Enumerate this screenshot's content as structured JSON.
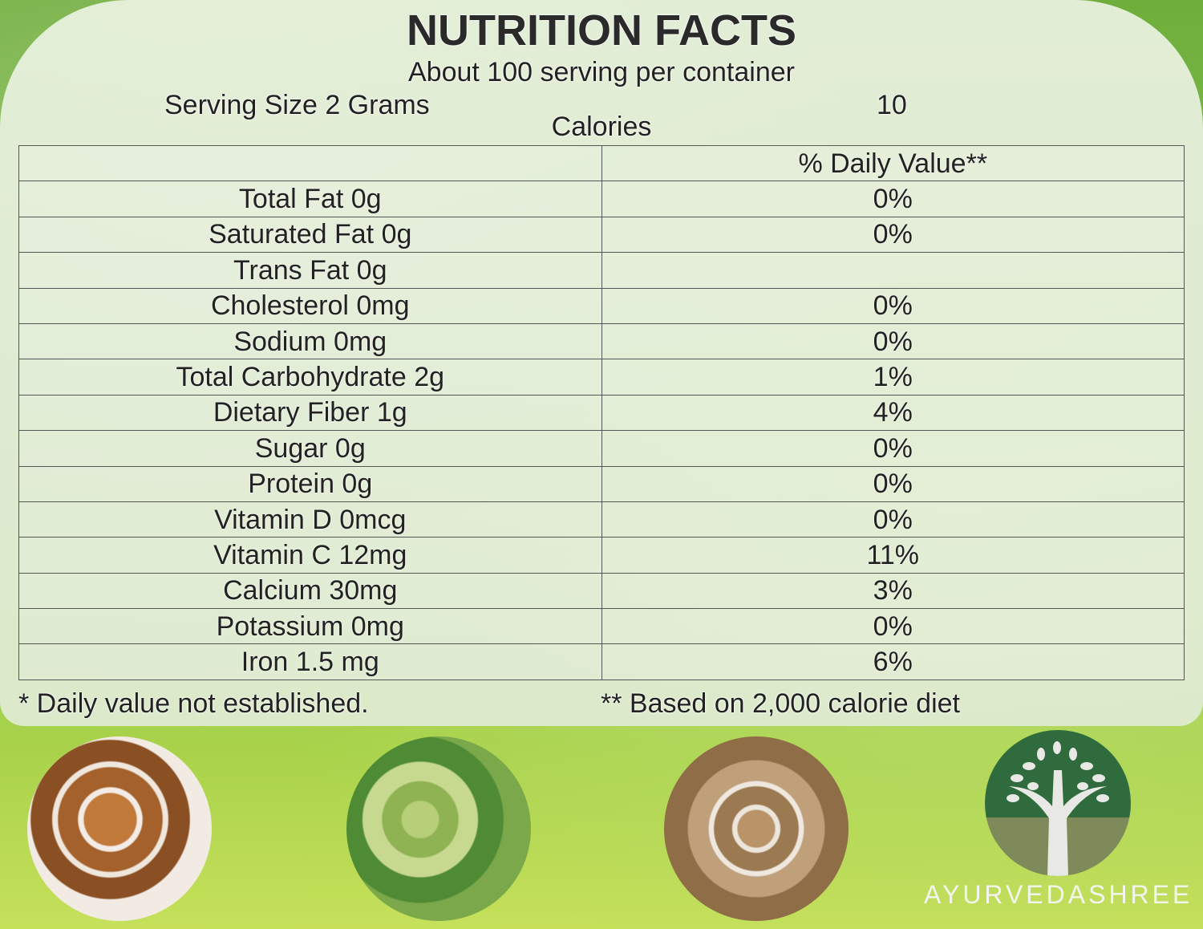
{
  "title": "NUTRITION FACTS",
  "servings_per_container": "About 100 serving per container",
  "serving_size": "Serving Size 2 Grams",
  "calories_value": "10",
  "calories_label": "Calories",
  "table": {
    "header": [
      "",
      "% Daily Value**"
    ],
    "rows": [
      [
        "Total Fat 0g",
        "0%"
      ],
      [
        "Saturated Fat 0g",
        "0%"
      ],
      [
        "Trans Fat 0g",
        ""
      ],
      [
        "Cholesterol 0mg",
        "0%"
      ],
      [
        "Sodium 0mg",
        "0%"
      ],
      [
        "Total Carbohydrate 2g",
        "1%"
      ],
      [
        "Dietary Fiber 1g",
        "4%"
      ],
      [
        "Sugar 0g",
        "0%"
      ],
      [
        "Protein 0g",
        "0%"
      ],
      [
        "Vitamin D 0mcg",
        "0%"
      ],
      [
        "Vitamin C 12mg",
        "11%"
      ],
      [
        "Calcium 30mg",
        "3%"
      ],
      [
        "Potassium 0mg",
        "0%"
      ],
      [
        "Iron 1.5 mg",
        "6%"
      ]
    ]
  },
  "footnote_1": "* Daily value not established.",
  "footnote_2": "** Based on 2,000 calorie diet",
  "brand": "AYURVEDASHREE"
}
